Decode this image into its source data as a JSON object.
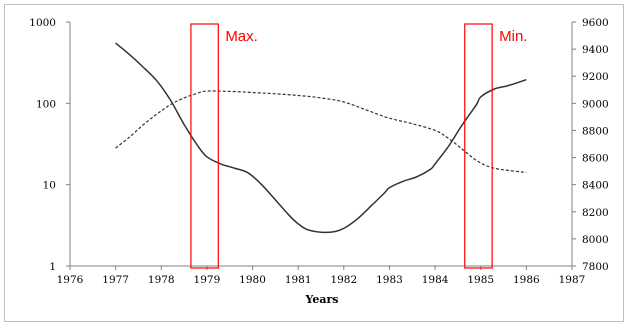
{
  "chart_data": {
    "type": "line",
    "title": "",
    "xlabel": "Years",
    "ylabel_left": "",
    "ylabel_right": "",
    "xlim": [
      1976,
      1987
    ],
    "x_ticks": [
      "1976",
      "1977",
      "1978",
      "1979",
      "1980",
      "1981",
      "1982",
      "1983",
      "1984",
      "1985",
      "1986",
      "1987"
    ],
    "y_left": {
      "scale": "log",
      "ylim": [
        1,
        1000
      ],
      "ticks": [
        "1",
        "10",
        "100",
        "1000"
      ]
    },
    "y_right": {
      "scale": "linear",
      "ylim": [
        7800,
        9600
      ],
      "ticks": [
        "7800",
        "8000",
        "8200",
        "8400",
        "8600",
        "8800",
        "9000",
        "9200",
        "9400",
        "9600"
      ]
    },
    "grid": false,
    "legend": "none",
    "series": [
      {
        "style": "solid",
        "axis": "left",
        "color": "#333333",
        "x": [
          1977,
          1977.3,
          1977.6,
          1977.9,
          1978.2,
          1978.5,
          1978.8,
          1979,
          1979.3,
          1979.6,
          1979.9,
          1980.2,
          1980.5,
          1980.8,
          1981,
          1981.2,
          1981.5,
          1981.8,
          1982,
          1982.3,
          1982.6,
          1982.9,
          1983,
          1983.3,
          1983.6,
          1983.9,
          1984,
          1984.3,
          1984.6,
          1984.9,
          1985,
          1985.3,
          1985.6,
          1986
        ],
        "y": [
          550,
          400,
          280,
          190,
          110,
          55,
          30,
          22,
          18,
          16,
          14,
          10,
          6.5,
          4.2,
          3.3,
          2.8,
          2.6,
          2.65,
          2.9,
          3.8,
          5.5,
          8,
          9.2,
          11,
          12.5,
          15.5,
          18,
          30,
          55,
          95,
          120,
          150,
          165,
          195
        ]
      },
      {
        "style": "dashed",
        "axis": "right",
        "color": "#333333",
        "x": [
          1977,
          1977.3,
          1977.6,
          1977.9,
          1978.2,
          1978.5,
          1978.8,
          1979,
          1979.5,
          1980,
          1980.5,
          1981,
          1981.5,
          1982,
          1982.5,
          1983,
          1983.5,
          1984,
          1984.3,
          1984.6,
          1984.9,
          1985.2,
          1985.5,
          1986
        ],
        "y": [
          8670,
          8750,
          8840,
          8920,
          8990,
          9040,
          9075,
          9090,
          9088,
          9080,
          9070,
          9058,
          9040,
          9010,
          8950,
          8890,
          8850,
          8800,
          8740,
          8660,
          8580,
          8530,
          8510,
          8490
        ]
      }
    ],
    "annotations": [
      {
        "text": "Max.",
        "x_from": 1978.65,
        "x_to": 1979.25
      },
      {
        "text": "Min.",
        "x_from": 1984.65,
        "x_to": 1985.25
      }
    ]
  }
}
